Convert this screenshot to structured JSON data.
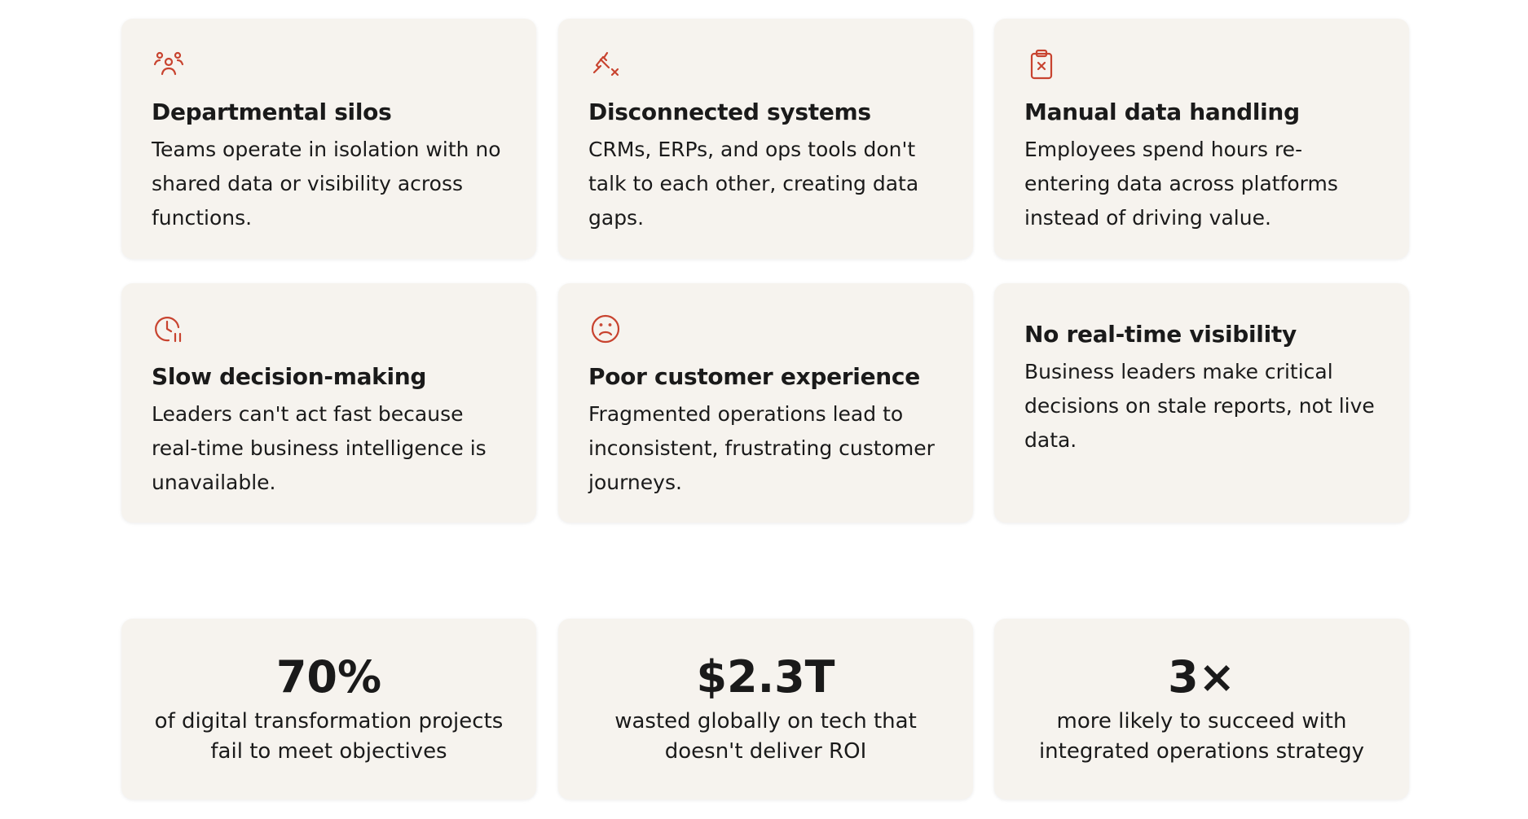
{
  "problems": [
    {
      "title": "Departmental silos",
      "description": "Teams operate in isolation with no shared data or visibility across functions."
    },
    {
      "title": "Disconnected systems",
      "description": "CRMs, ERPs, and ops tools don't talk to each other, creating data gaps."
    },
    {
      "title": "Manual data handling",
      "description": "Employees spend hours re-entering data across platforms instead of driving value."
    },
    {
      "title": "Slow decision-making",
      "description": "Leaders can't act fast because real-time business intelligence is unavailable."
    },
    {
      "title": "Poor customer experience",
      "description": "Fragmented operations lead to inconsistent, frustrating customer journeys."
    },
    {
      "title": "No real-time visibility",
      "description": "Business leaders make critical decisions on stale reports, not live data."
    }
  ],
  "stats": [
    {
      "value": "70%",
      "description": "of digital transformation projects fail to meet objectives"
    },
    {
      "value": "$2.3T",
      "description": "wasted globally on tech that doesn't deliver ROI"
    },
    {
      "value": "3×",
      "description": "more likely to succeed with integrated operations strategy"
    }
  ]
}
